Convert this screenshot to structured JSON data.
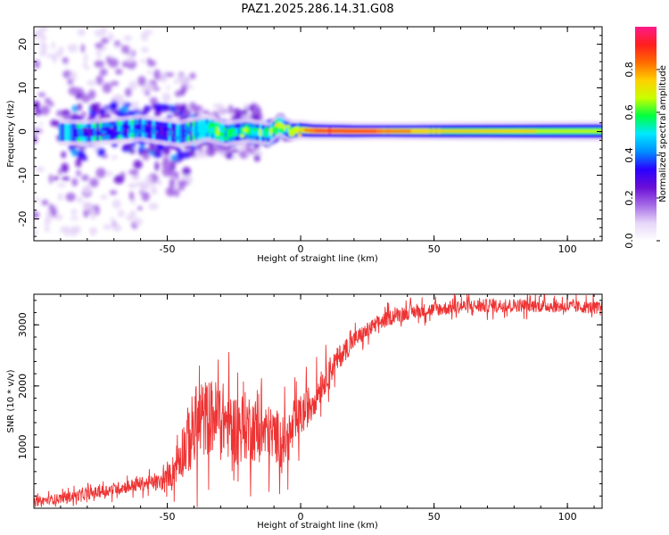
{
  "title": "PAZ1.2025.286.14.31.G08",
  "chart_data": [
    {
      "type": "heatmap",
      "xlabel": "Height of straight line (km)",
      "ylabel": "Frequency (Hz)",
      "xlim": [
        -100,
        113
      ],
      "ylim": [
        -25,
        24
      ],
      "xticks": [
        -50,
        0,
        50,
        100
      ],
      "xtick_labels": [
        "-50",
        "0",
        "50",
        "100"
      ],
      "yticks": [
        -20,
        -10,
        0,
        10,
        20
      ],
      "ytick_labels": [
        "-20",
        "-10",
        "0",
        "10",
        "20"
      ],
      "colorbar": {
        "label": "Normalized spectral amplitude",
        "range": [
          0,
          1
        ],
        "ticks": [
          0.0,
          0.2,
          0.4,
          0.6,
          0.8
        ],
        "tick_labels": [
          "0.0",
          "0.2",
          "0.4",
          "0.6",
          "0.8"
        ],
        "colors": [
          "#ffffff",
          "#e6d6f8",
          "#a56ae6",
          "#6a0ed6",
          "#2a00ff",
          "#0090ff",
          "#00e8ff",
          "#00ff40",
          "#c8ff00",
          "#ffd000",
          "#ff6a00",
          "#ff1e1e",
          "#ff1a8a"
        ]
      },
      "ridge": [
        [
          -100,
          0.0
        ],
        [
          -80,
          -0.3
        ],
        [
          -60,
          0.8
        ],
        [
          -45,
          -0.5
        ],
        [
          -35,
          0.8
        ],
        [
          -28,
          -0.5
        ],
        [
          -20,
          0.2
        ],
        [
          -12,
          -0.5
        ],
        [
          -8,
          1.5
        ],
        [
          -4,
          0.2
        ],
        [
          0,
          0.4
        ],
        [
          5,
          0.2
        ],
        [
          20,
          0.1
        ],
        [
          50,
          0.1
        ],
        [
          113,
          0.1
        ]
      ],
      "amplitude_profile": [
        [
          -100,
          0.2
        ],
        [
          -50,
          0.3
        ],
        [
          -38,
          0.35
        ],
        [
          -30,
          0.5
        ],
        [
          -15,
          0.55
        ],
        [
          -5,
          0.6
        ],
        [
          2,
          0.8
        ],
        [
          10,
          0.95
        ],
        [
          25,
          0.9
        ],
        [
          40,
          0.8
        ],
        [
          55,
          0.72
        ],
        [
          113,
          0.7
        ]
      ]
    },
    {
      "type": "line",
      "xlabel": "Height of straight line (km)",
      "ylabel": "SNR (10 * v/v)",
      "xlim": [
        -100,
        113
      ],
      "ylim": [
        0,
        3500
      ],
      "xticks": [
        -50,
        0,
        50,
        100
      ],
      "xtick_labels": [
        "-50",
        "0",
        "50",
        "100"
      ],
      "yticks": [
        1000,
        2000,
        3000
      ],
      "ytick_labels": [
        "1000",
        "2000",
        "3000"
      ],
      "line_color": "#ee3333",
      "trend": [
        [
          -100,
          100
        ],
        [
          -80,
          230
        ],
        [
          -60,
          400
        ],
        [
          -52,
          430
        ],
        [
          -48,
          600
        ],
        [
          -45,
          900
        ],
        [
          -40,
          1300
        ],
        [
          -35,
          1500
        ],
        [
          -30,
          1500
        ],
        [
          -25,
          1300
        ],
        [
          -20,
          1350
        ],
        [
          -15,
          1250
        ],
        [
          -10,
          1200
        ],
        [
          -5,
          1100
        ],
        [
          0,
          1500
        ],
        [
          5,
          1800
        ],
        [
          10,
          2200
        ],
        [
          15,
          2500
        ],
        [
          20,
          2750
        ],
        [
          25,
          2900
        ],
        [
          30,
          3050
        ],
        [
          35,
          3150
        ],
        [
          40,
          3200
        ],
        [
          50,
          3250
        ],
        [
          60,
          3300
        ],
        [
          80,
          3320
        ],
        [
          100,
          3300
        ],
        [
          113,
          3280
        ]
      ],
      "noise_amplitude": [
        [
          -100,
          120
        ],
        [
          -55,
          200
        ],
        [
          -50,
          260
        ],
        [
          -45,
          700
        ],
        [
          -40,
          1100
        ],
        [
          -30,
          1000
        ],
        [
          -20,
          950
        ],
        [
          -10,
          750
        ],
        [
          0,
          600
        ],
        [
          10,
          400
        ],
        [
          20,
          250
        ],
        [
          35,
          200
        ],
        [
          113,
          170
        ]
      ]
    }
  ]
}
